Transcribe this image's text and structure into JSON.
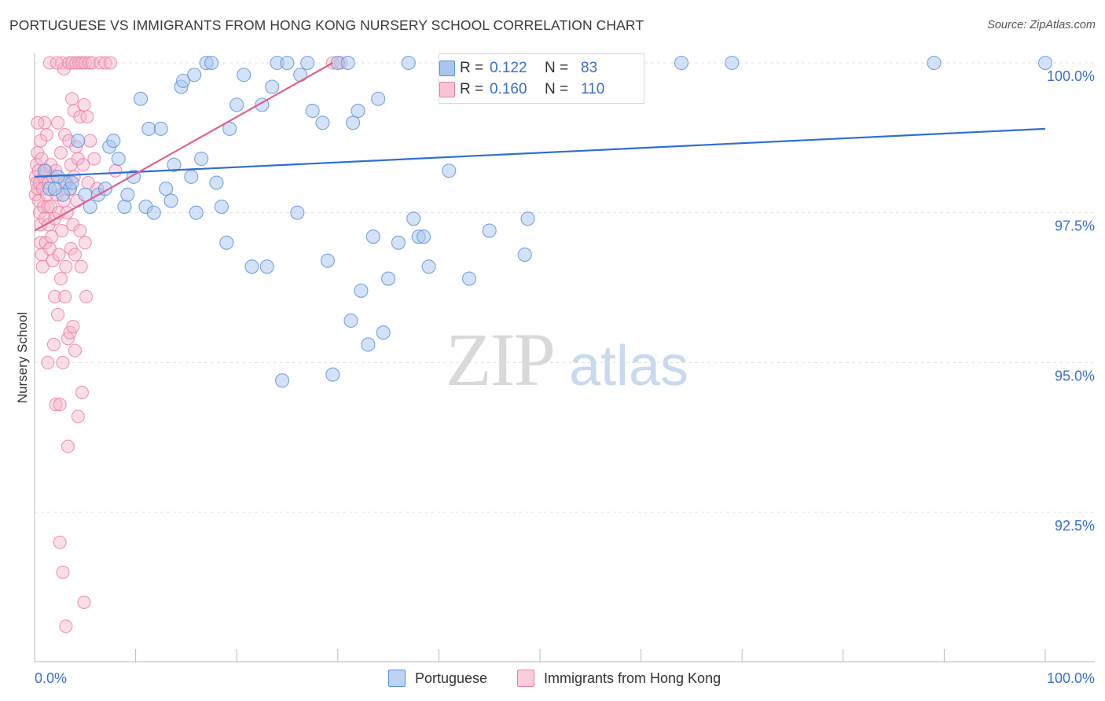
{
  "header": {
    "title": "PORTUGUESE VS IMMIGRANTS FROM HONG KONG NURSERY SCHOOL CORRELATION CHART",
    "source": "Source: ZipAtlas.com"
  },
  "watermark": {
    "zip": "ZIP",
    "atlas": "atlas"
  },
  "legend": {
    "series1": {
      "r_label": "R =",
      "r_value": "0.122",
      "n_label": "N =",
      "n_value": "83"
    },
    "series2": {
      "r_label": "R =",
      "r_value": "0.160",
      "n_label": "N =",
      "n_value": "110"
    }
  },
  "bottom_legend": {
    "series1": "Portuguese",
    "series2": "Immigrants from Hong Kong"
  },
  "colors": {
    "blue_fill": "#a8c6f0",
    "blue_stroke": "#5b8fd8",
    "blue_line": "#2f6fd0",
    "pink_fill": "#f4b6ca",
    "pink_stroke": "#e87fa3",
    "pink_line": "#e0608e",
    "tick_text": "#3a6fd1",
    "grid": "#e0e0e0"
  },
  "chart_data": {
    "type": "scatter",
    "title": "PORTUGUESE VS IMMIGRANTS FROM HONG KONG NURSERY SCHOOL CORRELATION CHART",
    "xlabel": "",
    "ylabel": "Nursery School",
    "xlim": [
      0,
      100
    ],
    "ylim": [
      90.25,
      100.25
    ],
    "x_tick_labels": [
      "0.0%",
      "100.0%"
    ],
    "y_ticks": [
      {
        "value": 100.0,
        "label": "100.0%"
      },
      {
        "value": 97.5,
        "label": "97.5%"
      },
      {
        "value": 95.0,
        "label": "95.0%"
      },
      {
        "value": 92.5,
        "label": "92.5%"
      }
    ],
    "series": [
      {
        "name": "Portuguese",
        "r": 0.122,
        "n": 83,
        "trend": {
          "x": [
            0,
            100
          ],
          "y": [
            98.1,
            98.9
          ]
        },
        "points": [
          [
            1,
            98.2
          ],
          [
            3,
            98.0
          ],
          [
            3.5,
            97.9
          ],
          [
            3.7,
            98.0
          ],
          [
            4.3,
            98.7
          ],
          [
            5,
            97.8
          ],
          [
            5.5,
            97.6
          ],
          [
            6.3,
            97.8
          ],
          [
            7,
            97.9
          ],
          [
            7.4,
            98.6
          ],
          [
            7.8,
            98.7
          ],
          [
            8.3,
            98.4
          ],
          [
            8.9,
            97.6
          ],
          [
            9.2,
            97.8
          ],
          [
            9.8,
            98.1
          ],
          [
            10.5,
            99.4
          ],
          [
            11,
            97.6
          ],
          [
            11.3,
            98.9
          ],
          [
            11.8,
            97.5
          ],
          [
            12.5,
            98.9
          ],
          [
            13,
            97.9
          ],
          [
            13.5,
            97.7
          ],
          [
            13.8,
            98.3
          ],
          [
            14.5,
            99.6
          ],
          [
            14.7,
            99.7
          ],
          [
            15.5,
            98.1
          ],
          [
            15.8,
            99.8
          ],
          [
            16,
            97.5
          ],
          [
            16.5,
            98.4
          ],
          [
            17,
            100
          ],
          [
            17.5,
            100
          ],
          [
            18,
            98.0
          ],
          [
            18.5,
            97.6
          ],
          [
            19,
            97.0
          ],
          [
            19.3,
            98.9
          ],
          [
            20,
            99.3
          ],
          [
            20.7,
            99.8
          ],
          [
            21.5,
            96.6
          ],
          [
            22.5,
            99.3
          ],
          [
            23,
            96.6
          ],
          [
            23.5,
            99.6
          ],
          [
            24,
            100
          ],
          [
            24.5,
            94.7
          ],
          [
            25,
            100
          ],
          [
            26,
            97.5
          ],
          [
            26.3,
            99.8
          ],
          [
            27,
            100
          ],
          [
            27.5,
            99.2
          ],
          [
            28.5,
            99.0
          ],
          [
            29,
            96.7
          ],
          [
            29.5,
            94.8
          ],
          [
            30,
            100
          ],
          [
            31,
            100
          ],
          [
            31.3,
            95.7
          ],
          [
            31.5,
            99.0
          ],
          [
            32,
            99.2
          ],
          [
            32.3,
            96.2
          ],
          [
            33,
            95.3
          ],
          [
            33.5,
            97.1
          ],
          [
            34,
            99.4
          ],
          [
            34.5,
            95.5
          ],
          [
            35,
            96.4
          ],
          [
            36,
            97.0
          ],
          [
            37,
            100
          ],
          [
            37.5,
            97.4
          ],
          [
            38,
            97.1
          ],
          [
            38.5,
            97.1
          ],
          [
            39,
            96.6
          ],
          [
            41,
            98.2
          ],
          [
            43,
            96.4
          ],
          [
            45,
            97.2
          ],
          [
            48,
            100
          ],
          [
            48.5,
            96.8
          ],
          [
            48.8,
            97.4
          ],
          [
            52,
            100
          ],
          [
            64,
            100
          ],
          [
            69,
            100
          ],
          [
            89,
            100
          ],
          [
            100,
            100
          ],
          [
            1.5,
            97.9
          ],
          [
            2.3,
            98.1
          ],
          [
            2.8,
            97.8
          ],
          [
            2,
            97.9
          ]
        ]
      },
      {
        "name": "Immigrants from Hong Kong",
        "r": 0.16,
        "n": 110,
        "trend": {
          "x": [
            0,
            29.5
          ],
          "y": [
            97.2,
            100.0
          ]
        },
        "points": [
          [
            0.1,
            98.1
          ],
          [
            0.1,
            97.8
          ],
          [
            0.2,
            98.3
          ],
          [
            0.2,
            98.0
          ],
          [
            0.3,
            97.9
          ],
          [
            0.3,
            98.5
          ],
          [
            0.4,
            97.7
          ],
          [
            0.4,
            98.2
          ],
          [
            0.5,
            97.5
          ],
          [
            0.5,
            98.0
          ],
          [
            0.6,
            97.3
          ],
          [
            0.6,
            97.0
          ],
          [
            0.7,
            96.8
          ],
          [
            0.7,
            98.4
          ],
          [
            0.8,
            97.9
          ],
          [
            0.8,
            96.6
          ],
          [
            0.9,
            97.6
          ],
          [
            0.9,
            98.1
          ],
          [
            1.0,
            99.0
          ],
          [
            1.0,
            97.4
          ],
          [
            1.1,
            98.2
          ],
          [
            1.1,
            97.0
          ],
          [
            1.2,
            97.8
          ],
          [
            1.2,
            98.8
          ],
          [
            1.3,
            97.6
          ],
          [
            1.3,
            95.0
          ],
          [
            1.4,
            98.0
          ],
          [
            1.4,
            97.3
          ],
          [
            1.5,
            96.9
          ],
          [
            1.6,
            98.3
          ],
          [
            1.6,
            97.6
          ],
          [
            1.7,
            97.1
          ],
          [
            1.8,
            96.7
          ],
          [
            1.8,
            98.1
          ],
          [
            1.9,
            95.3
          ],
          [
            2.0,
            97.4
          ],
          [
            2.0,
            96.1
          ],
          [
            2.1,
            98.2
          ],
          [
            2.1,
            94.3
          ],
          [
            2.2,
            97.8
          ],
          [
            2.3,
            95.8
          ],
          [
            2.3,
            99.0
          ],
          [
            2.4,
            97.5
          ],
          [
            2.4,
            96.8
          ],
          [
            2.5,
            94.3
          ],
          [
            2.5,
            92.0
          ],
          [
            2.6,
            98.5
          ],
          [
            2.6,
            96.4
          ],
          [
            2.7,
            97.2
          ],
          [
            2.7,
            100
          ],
          [
            2.8,
            91.5
          ],
          [
            2.8,
            95.0
          ],
          [
            2.9,
            97.7
          ],
          [
            2.9,
            99.9
          ],
          [
            3.0,
            96.1
          ],
          [
            3.0,
            98.8
          ],
          [
            3.1,
            96.6
          ],
          [
            3.1,
            90.6
          ],
          [
            3.2,
            97.5
          ],
          [
            3.2,
            98.0
          ],
          [
            3.3,
            95.4
          ],
          [
            3.3,
            93.6
          ],
          [
            3.4,
            98.7
          ],
          [
            3.4,
            100
          ],
          [
            3.5,
            97.9
          ],
          [
            3.5,
            95.5
          ],
          [
            3.6,
            96.9
          ],
          [
            3.6,
            98.3
          ],
          [
            3.7,
            99.4
          ],
          [
            3.7,
            100
          ],
          [
            3.8,
            95.6
          ],
          [
            3.8,
            97.3
          ],
          [
            3.9,
            98.1
          ],
          [
            3.9,
            99.2
          ],
          [
            4.0,
            95.2
          ],
          [
            4.0,
            96.8
          ],
          [
            4.1,
            98.6
          ],
          [
            4.1,
            100
          ],
          [
            4.2,
            97.7
          ],
          [
            4.3,
            94.1
          ],
          [
            4.3,
            98.4
          ],
          [
            4.4,
            100
          ],
          [
            4.5,
            97.2
          ],
          [
            4.5,
            99.1
          ],
          [
            4.6,
            96.6
          ],
          [
            4.7,
            94.5
          ],
          [
            4.7,
            100
          ],
          [
            4.8,
            98.3
          ],
          [
            4.9,
            99.3
          ],
          [
            4.9,
            91.0
          ],
          [
            5.0,
            97.0
          ],
          [
            5.0,
            100
          ],
          [
            5.1,
            96.1
          ],
          [
            5.2,
            99.1
          ],
          [
            5.3,
            98.0
          ],
          [
            5.4,
            100
          ],
          [
            5.5,
            98.7
          ],
          [
            5.7,
            100
          ],
          [
            5.9,
            98.4
          ],
          [
            6.2,
            97.9
          ],
          [
            6.5,
            100
          ],
          [
            7.0,
            100
          ],
          [
            7.5,
            100
          ],
          [
            0.3,
            99.0
          ],
          [
            0.6,
            98.7
          ],
          [
            1.5,
            100
          ],
          [
            2.2,
            100
          ],
          [
            8.0,
            98.2
          ],
          [
            29.5,
            100
          ],
          [
            30.3,
            100
          ]
        ]
      }
    ]
  },
  "axes": {
    "ylabel": "Nursery School",
    "x_left": "0.0%",
    "x_right": "100.0%"
  }
}
